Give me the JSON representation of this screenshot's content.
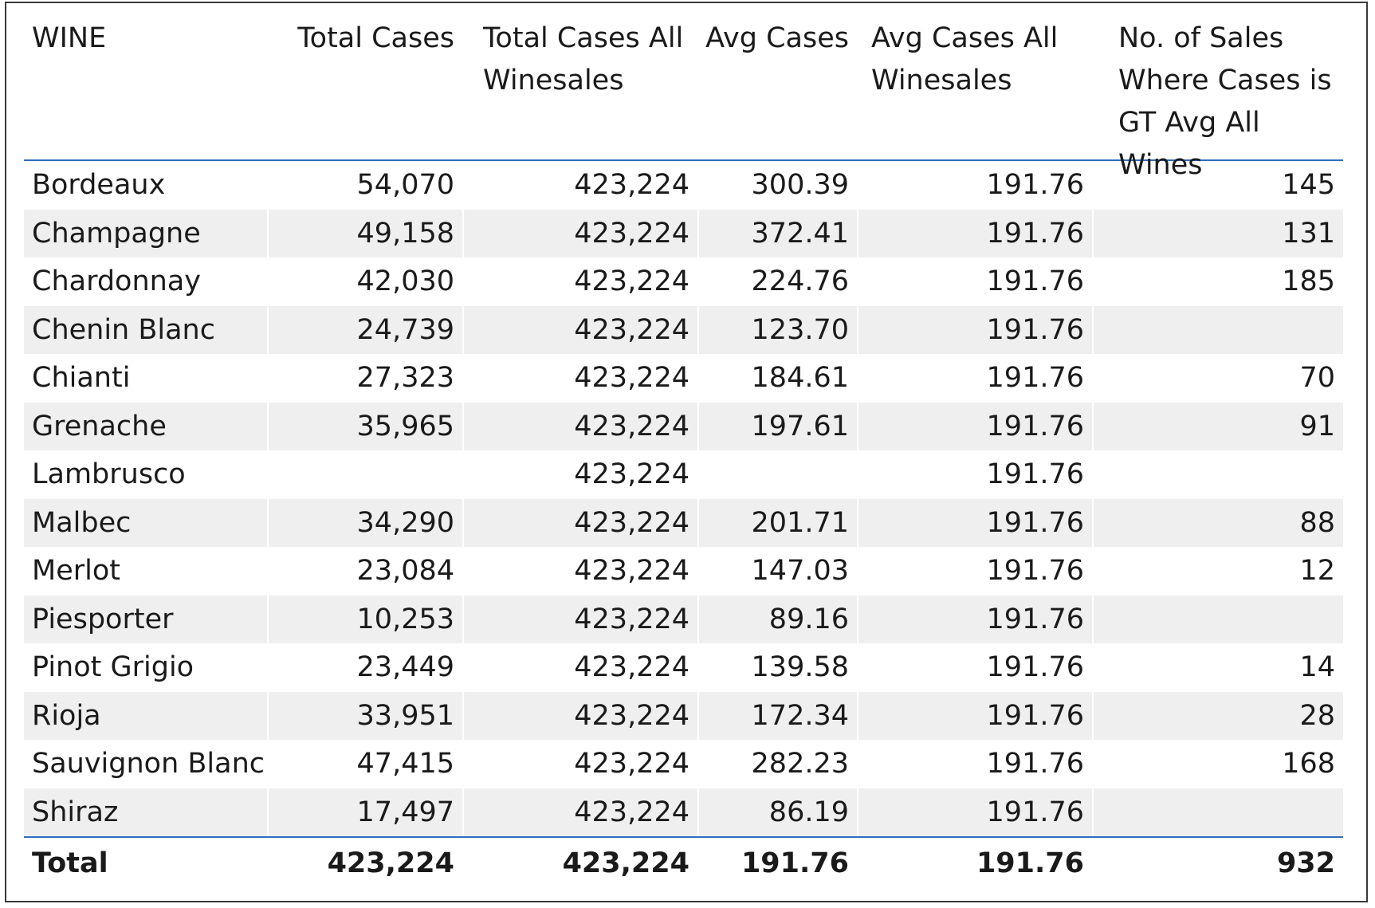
{
  "table": {
    "columns": [
      "WINE",
      "Total Cases",
      "Total Cases All Winesales",
      "Avg Cases",
      "Avg Cases All Winesales",
      "No. of Sales Where Cases is GT Avg All Wines"
    ],
    "rows": [
      [
        "Bordeaux",
        "54,070",
        "423,224",
        "300.39",
        "191.76",
        "145"
      ],
      [
        "Champagne",
        "49,158",
        "423,224",
        "372.41",
        "191.76",
        "131"
      ],
      [
        "Chardonnay",
        "42,030",
        "423,224",
        "224.76",
        "191.76",
        "185"
      ],
      [
        "Chenin Blanc",
        "24,739",
        "423,224",
        "123.70",
        "191.76",
        ""
      ],
      [
        "Chianti",
        "27,323",
        "423,224",
        "184.61",
        "191.76",
        "70"
      ],
      [
        "Grenache",
        "35,965",
        "423,224",
        "197.61",
        "191.76",
        "91"
      ],
      [
        "Lambrusco",
        "",
        "423,224",
        "",
        "191.76",
        ""
      ],
      [
        "Malbec",
        "34,290",
        "423,224",
        "201.71",
        "191.76",
        "88"
      ],
      [
        "Merlot",
        "23,084",
        "423,224",
        "147.03",
        "191.76",
        "12"
      ],
      [
        "Piesporter",
        "10,253",
        "423,224",
        "89.16",
        "191.76",
        ""
      ],
      [
        "Pinot Grigio",
        "23,449",
        "423,224",
        "139.58",
        "191.76",
        "14"
      ],
      [
        "Rioja",
        "33,951",
        "423,224",
        "172.34",
        "191.76",
        "28"
      ],
      [
        "Sauvignon Blanc",
        "47,415",
        "423,224",
        "282.23",
        "191.76",
        "168"
      ],
      [
        "Shiraz",
        "17,497",
        "423,224",
        "86.19",
        "191.76",
        ""
      ]
    ],
    "total": [
      "Total",
      "423,224",
      "423,224",
      "191.76",
      "191.76",
      "932"
    ]
  },
  "colors": {
    "header_rule": "#2f6fbf",
    "alt_row": "#efefef",
    "frame": "#3a3a3a"
  }
}
